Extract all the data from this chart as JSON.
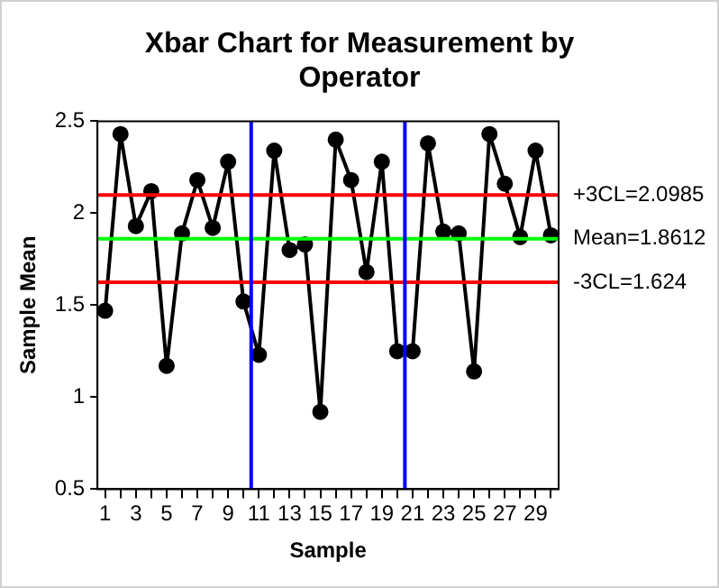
{
  "chart_data": {
    "type": "line",
    "title": "Xbar Chart for Measurement  by Operator",
    "xlabel": "Sample",
    "ylabel": "Sample Mean",
    "x": [
      1,
      2,
      3,
      4,
      5,
      6,
      7,
      8,
      9,
      10,
      11,
      12,
      13,
      14,
      15,
      16,
      17,
      18,
      19,
      20,
      21,
      22,
      23,
      24,
      25,
      26,
      27,
      28,
      29,
      30
    ],
    "series": [
      {
        "color": "#000000",
        "values": [
          1.47,
          2.43,
          1.93,
          2.12,
          1.17,
          1.89,
          2.18,
          1.92,
          2.28,
          1.52,
          1.23,
          2.34,
          1.8,
          1.83,
          0.92,
          2.4,
          2.18,
          1.68,
          2.28,
          1.25,
          1.25,
          2.38,
          1.9,
          1.89,
          1.14,
          2.43,
          2.16,
          1.87,
          2.34,
          1.88
        ]
      }
    ],
    "xlim": [
      0.5,
      30.5
    ],
    "xticks": [
      1,
      {
        "value": 2,
        "label": null
      },
      3,
      {
        "value": 4,
        "label": null
      },
      5,
      {
        "value": 6,
        "label": null
      },
      7,
      {
        "value": 8,
        "label": null
      },
      9,
      {
        "value": 10,
        "label": null
      },
      11,
      {
        "value": 12,
        "label": null
      },
      13,
      {
        "value": 14,
        "label": null
      },
      15,
      {
        "value": 16,
        "label": null
      },
      17,
      {
        "value": 18,
        "label": null
      },
      19,
      {
        "value": 20,
        "label": null
      },
      21,
      {
        "value": 22,
        "label": null
      },
      23,
      {
        "value": 24,
        "label": null
      },
      25,
      {
        "value": 26,
        "label": null
      },
      27,
      {
        "value": 28,
        "label": null
      },
      29,
      {
        "value": 30,
        "label": null
      }
    ],
    "ylim": [
      0.5,
      2.5
    ],
    "yticks": [
      0.5,
      1,
      1.5,
      2,
      2.5
    ],
    "ref_lines": [
      {
        "axis": "y",
        "value": 2.0985,
        "label": "+3CL=2.0985",
        "color": "#ff0000"
      },
      {
        "axis": "y",
        "value": 1.8612,
        "label": "Mean=1.8612",
        "color": "#00ff00"
      },
      {
        "axis": "y",
        "value": 1.624,
        "label": "-3CL=1.624",
        "color": "#ff0000"
      },
      {
        "axis": "x",
        "value": 10.5,
        "color": "#0000ff"
      },
      {
        "axis": "x",
        "value": 20.5,
        "color": "#0000ff"
      }
    ],
    "grid": false,
    "legend": false,
    "marker": "circle",
    "line_style": "solid"
  }
}
